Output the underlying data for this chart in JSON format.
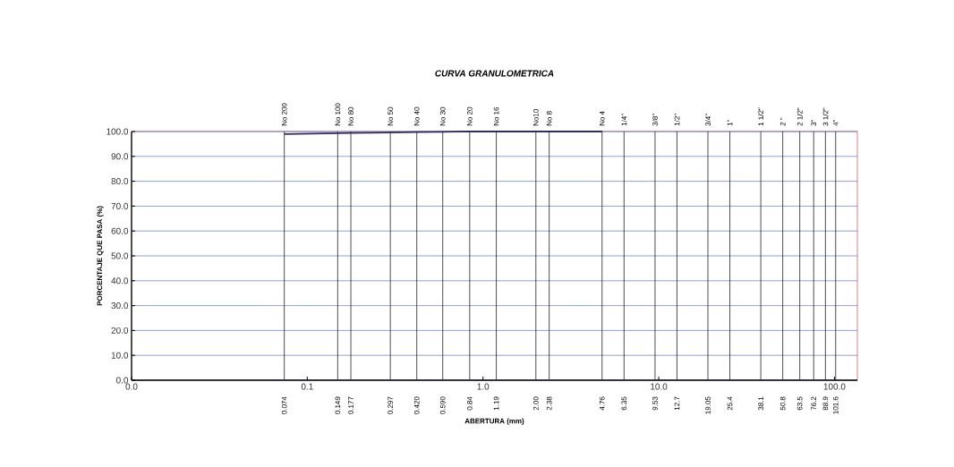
{
  "chart_data": {
    "type": "line",
    "title": "CURVA GRANULOMETRICA",
    "xlabel": "ABERTURA (mm)",
    "ylabel": "PORCENTAJE QUE PASA (%)",
    "log": "x",
    "xlim": [
      0.01,
      135
    ],
    "ylim": [
      0,
      100
    ],
    "xticks": [
      {
        "value": 0.01,
        "label": "0.0"
      },
      {
        "value": 0.1,
        "label": "0.1"
      },
      {
        "value": 1,
        "label": "1.0"
      },
      {
        "value": 10,
        "label": "10.0"
      },
      {
        "value": 100,
        "label": "100.0"
      }
    ],
    "yticks": [
      {
        "value": 0,
        "label": "0.0"
      },
      {
        "value": 10,
        "label": "10.0"
      },
      {
        "value": 20,
        "label": "20.0"
      },
      {
        "value": 30,
        "label": "30.0"
      },
      {
        "value": 40,
        "label": "40.0"
      },
      {
        "value": 50,
        "label": "50.0"
      },
      {
        "value": 60,
        "label": "60.0"
      },
      {
        "value": 70,
        "label": "70.0"
      },
      {
        "value": 80,
        "label": "80.0"
      },
      {
        "value": 90,
        "label": "90.0"
      },
      {
        "value": 100,
        "label": "100.0"
      }
    ],
    "ref_lines": [
      {
        "axis": "x",
        "value": 0.074,
        "label": "0.074",
        "color": "#222222"
      },
      {
        "axis": "x",
        "value": 0.149,
        "label": "0.149",
        "color": "#222222"
      },
      {
        "axis": "x",
        "value": 0.177,
        "label": "0.177",
        "color": "#222222"
      },
      {
        "axis": "x",
        "value": 0.297,
        "label": "0.297",
        "color": "#222222"
      },
      {
        "axis": "x",
        "value": 0.42,
        "label": "0.420",
        "color": "#222222"
      },
      {
        "axis": "x",
        "value": 0.59,
        "label": "0.590",
        "color": "#222222"
      },
      {
        "axis": "x",
        "value": 0.84,
        "label": "0.84",
        "color": "#222222"
      },
      {
        "axis": "x",
        "value": 1.19,
        "label": "1.19",
        "color": "#222222"
      },
      {
        "axis": "x",
        "value": 2.0,
        "label": "2.00",
        "color": "#222222"
      },
      {
        "axis": "x",
        "value": 2.38,
        "label": "2.38",
        "color": "#222222"
      },
      {
        "axis": "x",
        "value": 4.76,
        "label": "4.76",
        "color": "#222222"
      },
      {
        "axis": "x",
        "value": 6.35,
        "label": "6.35",
        "color": "#222222"
      },
      {
        "axis": "x",
        "value": 9.53,
        "label": "9.53",
        "color": "#222222"
      },
      {
        "axis": "x",
        "value": 12.7,
        "label": "12.7",
        "color": "#222222"
      },
      {
        "axis": "x",
        "value": 19.05,
        "label": "19.05",
        "color": "#222222"
      },
      {
        "axis": "x",
        "value": 25.4,
        "label": "25.4",
        "color": "#222222"
      },
      {
        "axis": "x",
        "value": 38.1,
        "label": "38.1",
        "color": "#222222"
      },
      {
        "axis": "x",
        "value": 50.8,
        "label": "50.8",
        "color": "#222222"
      },
      {
        "axis": "x",
        "value": 63.5,
        "label": "63.5",
        "color": "#222222"
      },
      {
        "axis": "x",
        "value": 76.2,
        "label": "76.2",
        "color": "#222222"
      },
      {
        "axis": "x",
        "value": 88.9,
        "label": "88.9",
        "color": "#222222"
      },
      {
        "axis": "x",
        "value": 101.6,
        "label": "101.6",
        "color": "#222222"
      }
    ],
    "annotations": [
      "No 200",
      "No 100",
      "No 80",
      "No 50",
      "No 40",
      "No 30",
      "No 20",
      "No 16",
      "No10",
      "No 8",
      "No 4",
      "1/4\"",
      "3/8\"",
      "1/2\"",
      "3/4\"",
      "1\"",
      "1 1/2\"",
      "2 \"",
      "2 1/2\"",
      "3\"",
      "3 1/2\"",
      "4\""
    ],
    "grid": "y",
    "marker": "none",
    "line_style": "solid",
    "series": [
      {
        "color": "#2b2d5e",
        "x": [
          0.074,
          0.149,
          0.177,
          0.297,
          0.42,
          0.59,
          0.84,
          1.19,
          2.0,
          2.38,
          4.76
        ],
        "values": [
          99,
          99.3,
          99.4,
          99.6,
          99.8,
          99.9,
          100,
          100,
          100,
          100,
          100
        ]
      }
    ]
  }
}
